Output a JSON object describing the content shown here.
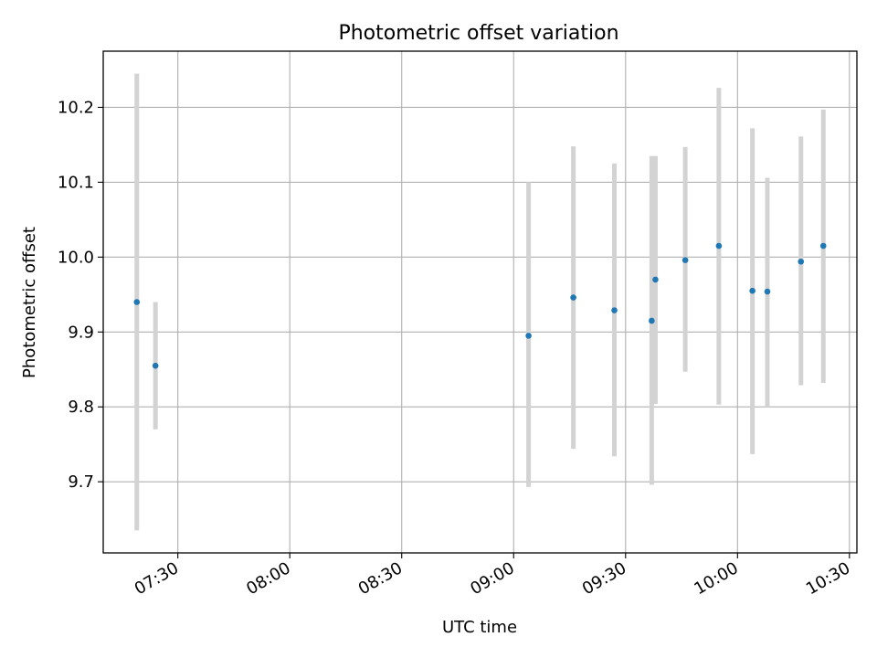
{
  "chart_data": {
    "type": "scatter",
    "title": "Photometric offset variation",
    "xlabel": "UTC time",
    "ylabel": "Photometric offset",
    "x_ticks": [
      "07:30",
      "08:00",
      "08:30",
      "09:00",
      "09:30",
      "10:00",
      "10:30"
    ],
    "y_ticks": [
      "9.7",
      "9.8",
      "9.9",
      "10.0",
      "10.1",
      "10.2"
    ],
    "xlim": [
      "07:10",
      "10:32"
    ],
    "ylim": [
      9.605,
      10.275
    ],
    "grid": true,
    "colors": {
      "points": "#1f77b4",
      "error_bars": "#d3d3d3",
      "grid": "#b0b0b0"
    },
    "series": [
      {
        "points": [
          {
            "x": "07:19",
            "y": 9.94,
            "yerr_low": 9.635,
            "yerr_high": 10.245
          },
          {
            "x": "07:24",
            "y": 9.855,
            "yerr_low": 9.77,
            "yerr_high": 9.94
          },
          {
            "x": "09:04",
            "y": 9.895,
            "yerr_low": 9.693,
            "yerr_high": 10.1
          },
          {
            "x": "09:16",
            "y": 9.946,
            "yerr_low": 9.744,
            "yerr_high": 10.148
          },
          {
            "x": "09:27",
            "y": 9.929,
            "yerr_low": 9.734,
            "yerr_high": 10.125
          },
          {
            "x": "09:37",
            "y": 9.915,
            "yerr_low": 9.696,
            "yerr_high": 10.135
          },
          {
            "x": "09:38",
            "y": 9.97,
            "yerr_low": 9.804,
            "yerr_high": 10.135
          },
          {
            "x": "09:46",
            "y": 9.996,
            "yerr_low": 9.847,
            "yerr_high": 10.147
          },
          {
            "x": "09:55",
            "y": 10.015,
            "yerr_low": 9.803,
            "yerr_high": 10.226
          },
          {
            "x": "10:04",
            "y": 9.955,
            "yerr_low": 9.737,
            "yerr_high": 10.172
          },
          {
            "x": "10:08",
            "y": 9.954,
            "yerr_low": 9.8,
            "yerr_high": 10.106
          },
          {
            "x": "10:17",
            "y": 9.994,
            "yerr_low": 9.829,
            "yerr_high": 10.161
          },
          {
            "x": "10:23",
            "y": 10.015,
            "yerr_low": 9.832,
            "yerr_high": 10.197
          }
        ]
      }
    ]
  }
}
